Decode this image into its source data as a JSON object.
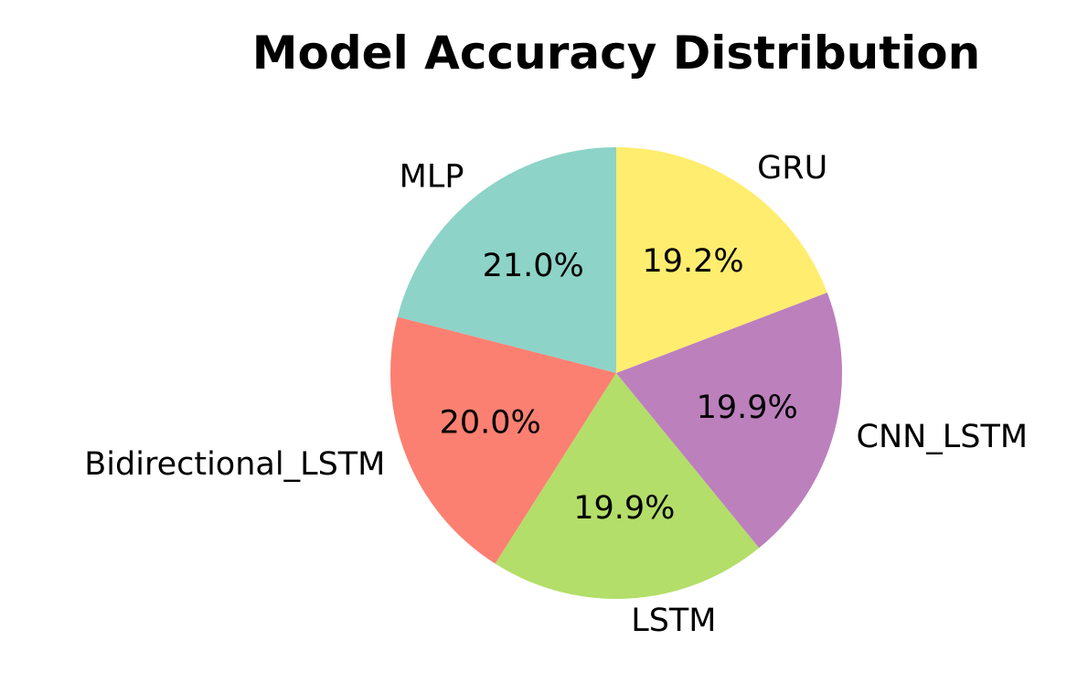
{
  "chart_data": {
    "type": "pie",
    "title": "Model Accuracy Distribution",
    "start_angle_deg": 90,
    "direction": "counterclockwise",
    "slices": [
      {
        "label": "MLP",
        "value": 21.0,
        "pct_text": "21.0%",
        "color": "#8dd3c7"
      },
      {
        "label": "Bidirectional_LSTM",
        "value": 20.0,
        "pct_text": "20.0%",
        "color": "#fb8072"
      },
      {
        "label": "LSTM",
        "value": 19.9,
        "pct_text": "19.9%",
        "color": "#b3de69"
      },
      {
        "label": "CNN_LSTM",
        "value": 19.9,
        "pct_text": "19.9%",
        "color": "#bc80bd"
      },
      {
        "label": "GRU",
        "value": 19.2,
        "pct_text": "19.2%",
        "color": "#ffed6f"
      }
    ]
  }
}
